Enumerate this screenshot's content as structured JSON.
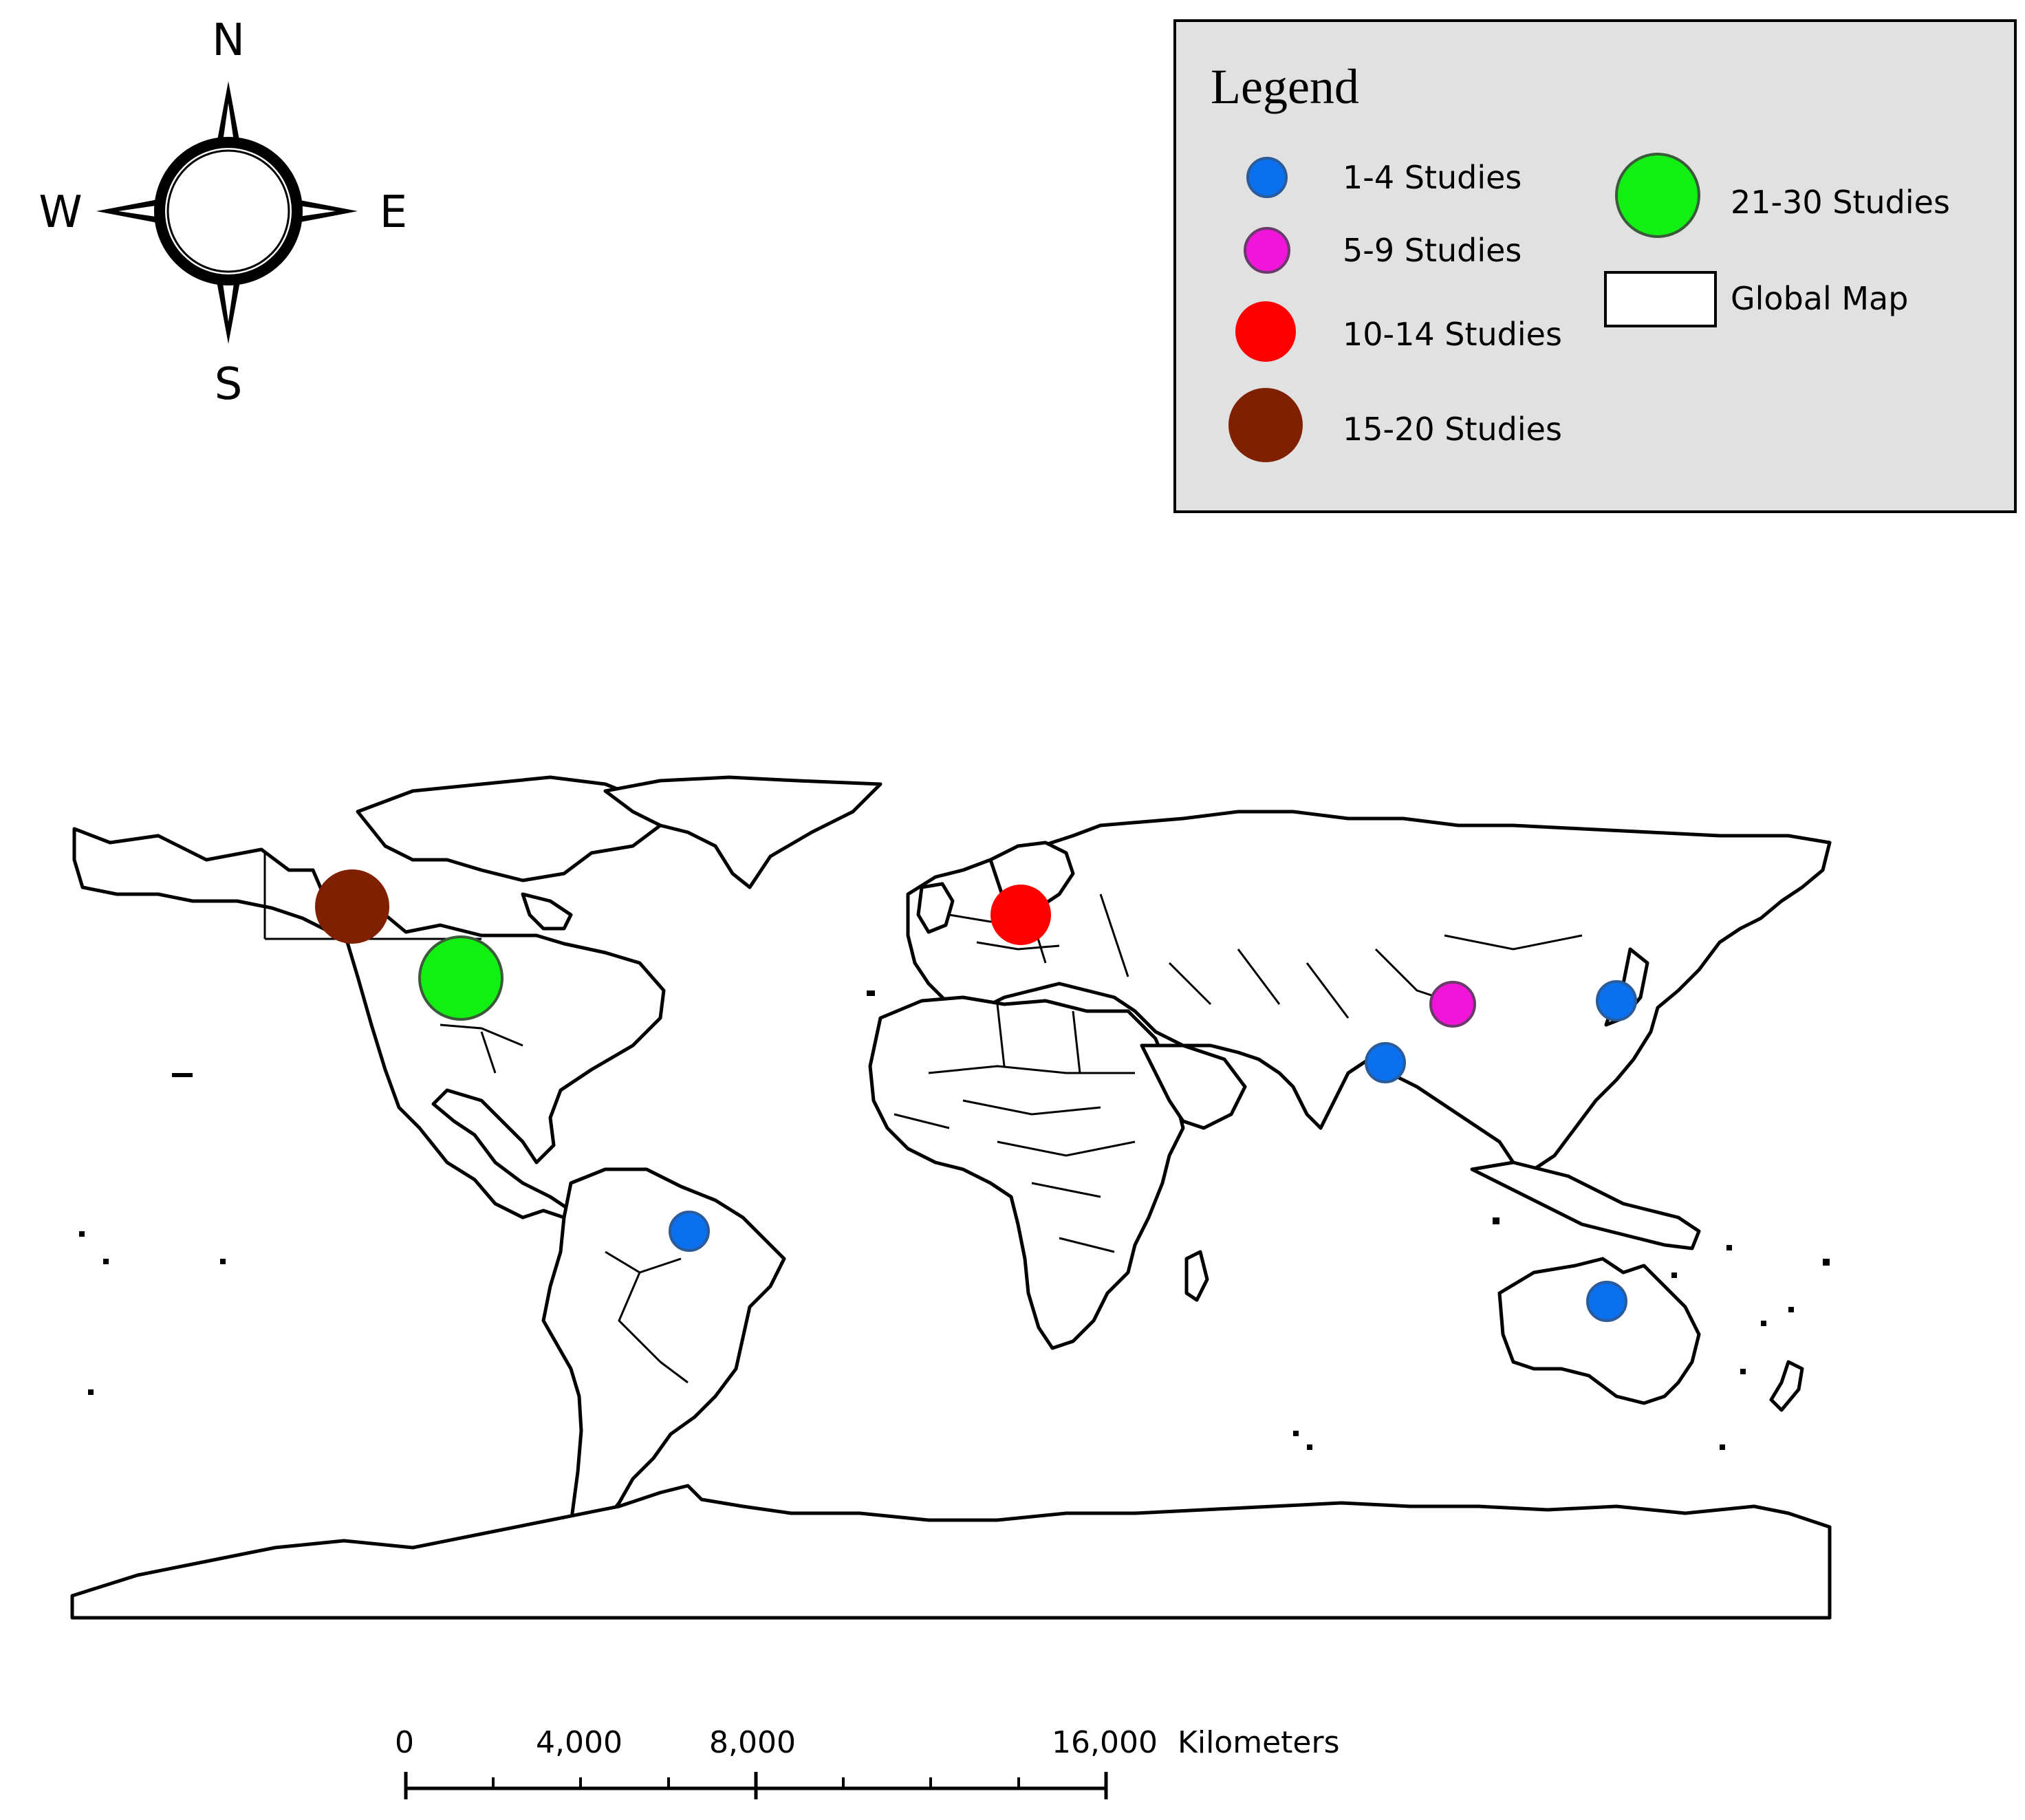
{
  "compass": {
    "north": "N",
    "south": "S",
    "east": "E",
    "west": "W",
    "icon": "compass-rose-icon"
  },
  "legend": {
    "title": "Legend",
    "items": [
      {
        "key": "cat-1-4",
        "label": "1-4 Studies",
        "color": "#0a70ee"
      },
      {
        "key": "cat-5-9",
        "label": "5-9 Studies",
        "color": "#f015d8"
      },
      {
        "key": "cat-10-14",
        "label": "10-14 Studies",
        "color": "#ff0000"
      },
      {
        "key": "cat-15-20",
        "label": "15-20 Studies",
        "color": "#7f2000"
      },
      {
        "key": "cat-21-30",
        "label": "21-30 Studies",
        "color": "#11f012"
      },
      {
        "key": "global-map",
        "label": "Global Map",
        "color": "#ffffff"
      }
    ],
    "background": "#e1e1e1"
  },
  "map": {
    "markers": [
      {
        "name": "marker-western-canada",
        "region": "Western Canada",
        "category": "15-20 Studies",
        "color": "#7f2000"
      },
      {
        "name": "marker-united-states",
        "region": "United States",
        "category": "21-30 Studies",
        "color": "#11f012"
      },
      {
        "name": "marker-europe",
        "region": "Europe",
        "category": "10-14 Studies",
        "color": "#ff0000"
      },
      {
        "name": "marker-china",
        "region": "China",
        "category": "5-9 Studies",
        "color": "#f015d8"
      },
      {
        "name": "marker-japan",
        "region": "Japan",
        "category": "1-4 Studies",
        "color": "#0a70ee"
      },
      {
        "name": "marker-bangladesh",
        "region": "Bangladesh",
        "category": "1-4 Studies",
        "color": "#0a70ee"
      },
      {
        "name": "marker-brazil",
        "region": "Brazil",
        "category": "1-4 Studies",
        "color": "#0a70ee"
      },
      {
        "name": "marker-australia",
        "region": "Australia",
        "category": "1-4 Studies",
        "color": "#0a70ee"
      }
    ]
  },
  "scale_bar": {
    "ticks": [
      "0",
      "4,000",
      "8,000",
      "16,000"
    ],
    "unit": "Kilometers"
  }
}
